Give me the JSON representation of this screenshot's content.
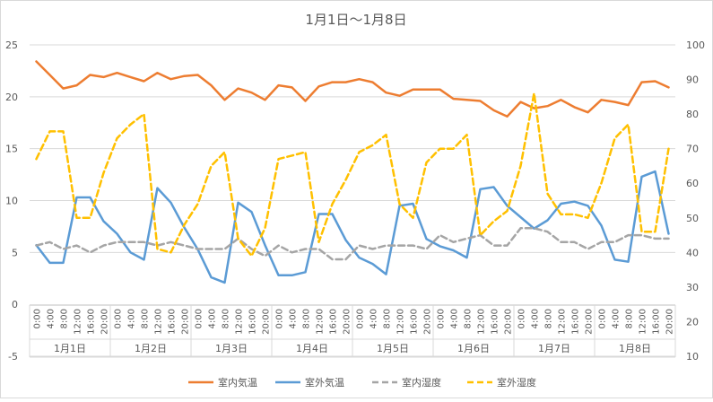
{
  "chart_data": {
    "type": "line",
    "title": "1月1日～1月8日",
    "time_labels": [
      "0:00",
      "4:00",
      "8:00",
      "12:00",
      "16:00",
      "20:00"
    ],
    "day_labels": [
      "1月1日",
      "1月2日",
      "1月3日",
      "1月4日",
      "1月5日",
      "1月6日",
      "1月7日",
      "1月8日"
    ],
    "y_left": {
      "min": -5,
      "max": 25,
      "step": 5,
      "ticks": [
        "-5",
        "0",
        "5",
        "10",
        "15",
        "20",
        "25"
      ]
    },
    "y_right": {
      "min": 10,
      "max": 100,
      "step": 10,
      "ticks": [
        "10",
        "20",
        "30",
        "40",
        "50",
        "60",
        "70",
        "80",
        "90",
        "100"
      ]
    },
    "grid": true,
    "legend_position": "bottom",
    "series": [
      {
        "name": "室内気温",
        "axis": "left",
        "color": "#ED7D31",
        "dash": false,
        "values": [
          23.4,
          22.1,
          20.8,
          21.1,
          22.1,
          21.9,
          22.3,
          21.9,
          21.5,
          22.3,
          21.7,
          22.0,
          22.1,
          21.1,
          19.7,
          20.8,
          20.4,
          19.7,
          21.1,
          20.9,
          19.6,
          21.0,
          21.4,
          21.4,
          21.7,
          21.4,
          20.4,
          20.1,
          20.7,
          20.7,
          20.7,
          19.8,
          19.7,
          19.6,
          18.7,
          18.1,
          19.5,
          18.9,
          19.1,
          19.7,
          19.0,
          18.5,
          19.7,
          19.5,
          19.2,
          21.4,
          21.5,
          20.9
        ]
      },
      {
        "name": "室外気温",
        "axis": "left",
        "color": "#5B9BD5",
        "dash": false,
        "values": [
          5.7,
          4.0,
          4.0,
          10.3,
          10.3,
          8.0,
          6.8,
          5.0,
          4.3,
          11.2,
          9.8,
          7.4,
          5.3,
          2.6,
          2.1,
          9.8,
          8.9,
          5.7,
          2.8,
          2.8,
          3.1,
          8.7,
          8.7,
          6.2,
          4.5,
          3.9,
          2.9,
          9.5,
          9.7,
          6.3,
          5.6,
          5.2,
          4.5,
          11.1,
          11.3,
          9.5,
          8.4,
          7.3,
          8.1,
          9.7,
          9.9,
          9.5,
          7.6,
          4.3,
          4.1,
          12.3,
          12.8,
          6.8
        ]
      },
      {
        "name": "室内湿度",
        "axis": "right",
        "color": "#A5A5A5",
        "dash": true,
        "values": [
          42,
          43,
          41,
          42,
          40,
          42,
          43,
          43,
          43,
          42,
          43,
          42,
          41,
          41,
          41,
          44,
          41,
          39,
          42,
          40,
          41,
          41,
          38,
          38,
          42,
          41,
          42,
          42,
          42,
          41,
          45,
          43,
          44,
          45,
          42,
          42,
          47,
          47,
          46,
          43,
          43,
          41,
          43,
          43,
          45,
          45,
          44,
          44
        ]
      },
      {
        "name": "室外湿度",
        "axis": "right",
        "color": "#FFC000",
        "dash": true,
        "values": [
          67,
          75,
          75,
          50,
          50,
          63,
          73,
          77,
          80,
          41,
          40,
          48,
          54,
          65,
          69,
          44,
          39,
          47,
          67,
          68,
          69,
          43,
          54,
          61,
          69,
          71,
          74,
          54,
          50,
          66,
          70,
          70,
          74,
          45,
          49,
          52,
          65,
          86,
          57,
          51,
          51,
          50,
          60,
          73,
          77,
          46,
          46,
          70
        ]
      }
    ]
  }
}
